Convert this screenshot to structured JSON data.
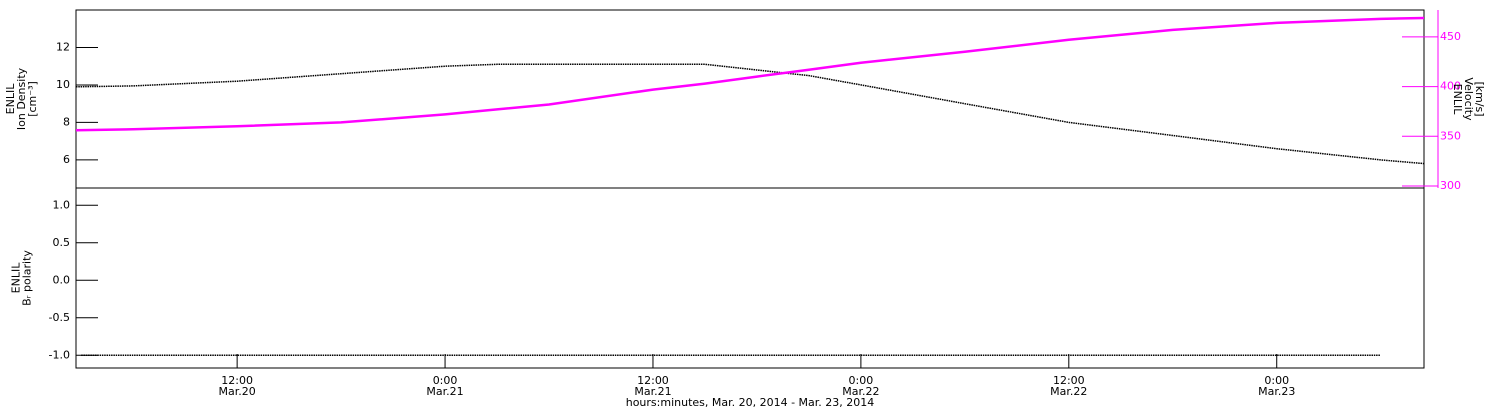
{
  "chart_data": [
    {
      "type": "line",
      "ylabel": [
        "ENLIL",
        "Ion Density",
        "[cm⁻³]"
      ],
      "y2label": [
        "ENLIL",
        "Velocity",
        "[km/s]"
      ],
      "x": [
        2.7,
        6,
        12,
        18,
        24,
        27,
        30,
        36,
        39,
        42,
        45,
        48,
        54,
        60,
        66,
        72,
        78,
        80.5
      ],
      "xlim": [
        2.7,
        80.5
      ],
      "ylim": [
        4.5,
        14
      ],
      "yticks": [
        6,
        8,
        10,
        12
      ],
      "y2lim": [
        298,
        477
      ],
      "y2ticks": [
        300,
        350,
        400,
        450
      ],
      "y2color": "#ff00ff",
      "series": [
        {
          "color": "#000000",
          "values": [
            9.9,
            9.95,
            10.2,
            10.6,
            11.0,
            11.1,
            11.1,
            11.1,
            11.1,
            10.8,
            10.5,
            10.0,
            9.0,
            8.0,
            7.3,
            6.6,
            6.0,
            5.8
          ]
        },
        {
          "color": "#ff00ff",
          "axis": "y2",
          "values": [
            356,
            357,
            360,
            364,
            372,
            377,
            382,
            397,
            403,
            410,
            417,
            424,
            435,
            447,
            457,
            464,
            468,
            469
          ]
        }
      ]
    },
    {
      "type": "line",
      "ylabel": [
        "ENLIL",
        "Bᵣ polarity"
      ],
      "xlabel": "hours:minutes, Mar. 20, 2014 - Mar. 23, 2014",
      "x": [
        3,
        6,
        9,
        12,
        15,
        18,
        21,
        24,
        27,
        30,
        33,
        36,
        39,
        42,
        45,
        48,
        51,
        54,
        57,
        60,
        63,
        66,
        69,
        72,
        75,
        78
      ],
      "xlim": [
        2.7,
        80.5
      ],
      "xticks": [
        {
          "value": 12,
          "label": "12:00"
        },
        {
          "value": 24,
          "label": "0:00"
        },
        {
          "value": 36,
          "label": "12:00"
        },
        {
          "value": 48,
          "label": "0:00"
        },
        {
          "value": 60,
          "label": "12:00"
        },
        {
          "value": 72,
          "label": "0:00"
        }
      ],
      "xtick_dates": [
        "Mar.20",
        "Mar.21",
        "Mar.21",
        "Mar.22",
        "Mar.22",
        "Mar.23"
      ],
      "ylim": [
        -1.17,
        1.23
      ],
      "yticks": [
        {
          "value": 1,
          "label": "1.0"
        },
        {
          "value": 0.5,
          "label": "0.5"
        },
        {
          "value": 0,
          "label": "0.0"
        },
        {
          "value": -0.5,
          "label": "-0.5"
        },
        {
          "value": -1,
          "label": "-1.0"
        }
      ],
      "series": [
        {
          "color": "#000000",
          "values": [
            -1,
            -1,
            -1,
            -1,
            -1,
            -1,
            -1,
            -1,
            -1,
            -1,
            -1,
            -1,
            -1,
            -1,
            -1,
            -1,
            -1,
            -1,
            -1,
            -1,
            -1,
            -1,
            -1,
            -1,
            -1,
            -1
          ]
        }
      ]
    }
  ]
}
